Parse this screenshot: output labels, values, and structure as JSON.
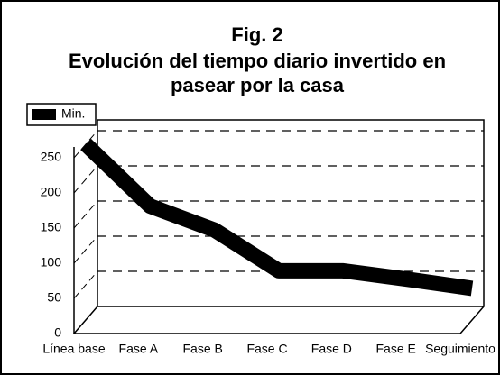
{
  "chart_data": {
    "type": "line",
    "title": "Fig. 2",
    "subtitle": [
      "Evolución del tiempo diario invertido en",
      "pasear por la casa"
    ],
    "categories": [
      "Línea base",
      "Fase A",
      "Fase B",
      "Fase C",
      "Fase D",
      "Fase E",
      "Seguimiento"
    ],
    "series": [
      {
        "name": "Min.",
        "color": "#000000",
        "values": [
          250,
          162,
          128,
          70,
          70,
          58,
          45
        ]
      }
    ],
    "ylim": [
      0,
      250
    ],
    "yticks": [
      0,
      50,
      100,
      150,
      200,
      250
    ],
    "grid": true,
    "legend": "top-left"
  }
}
